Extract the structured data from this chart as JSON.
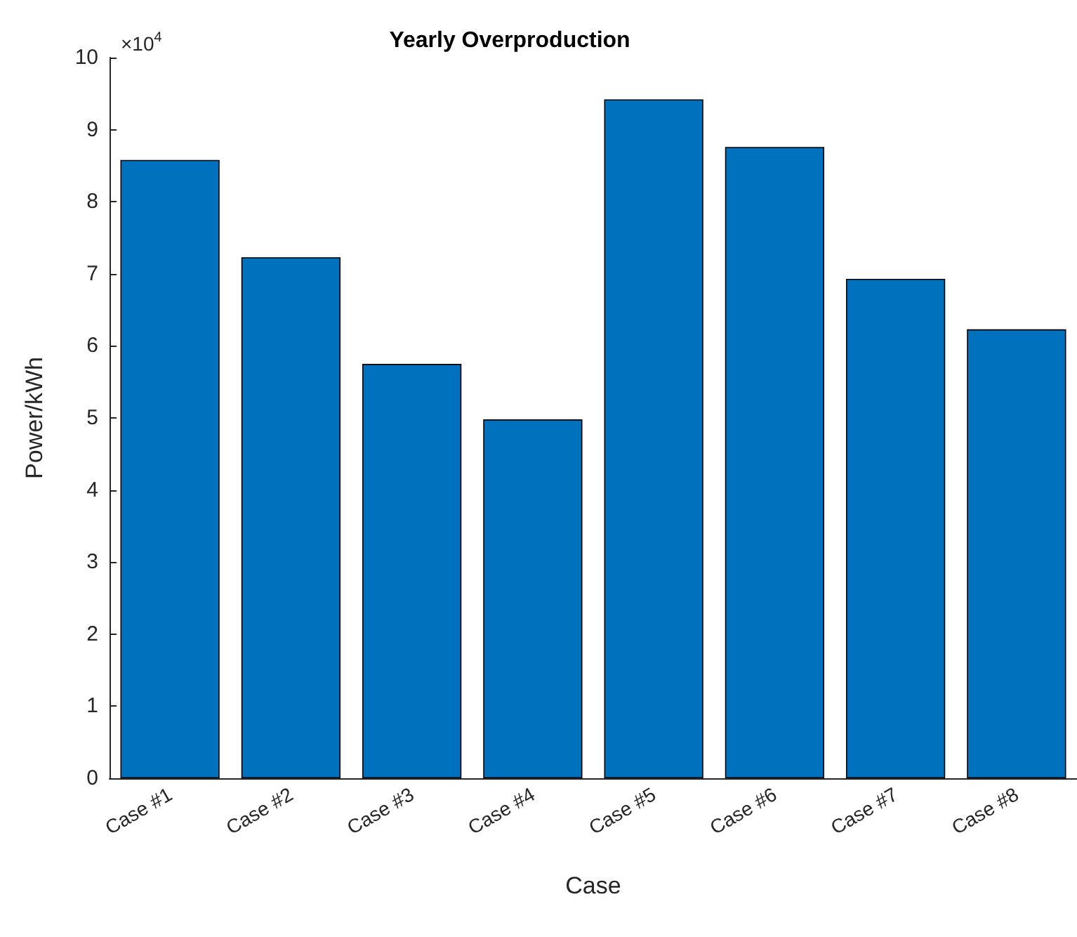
{
  "chart_data": {
    "type": "bar",
    "title": "Yearly Overproduction",
    "xlabel": "Case",
    "ylabel": "Power/kWh",
    "categories": [
      "Case #1",
      "Case #2",
      "Case #3",
      "Case #4",
      "Case #5",
      "Case #6",
      "Case #7",
      "Case #8"
    ],
    "values": [
      8.58,
      7.23,
      5.75,
      4.98,
      9.42,
      8.76,
      6.93,
      6.23
    ],
    "color": "#0072bd",
    "ylim": [
      0,
      10
    ],
    "yticks": [
      0,
      1,
      2,
      3,
      4,
      5,
      6,
      7,
      8,
      9,
      10
    ],
    "annotations": [
      "×10$^{4}$"
    ],
    "grid": false
  }
}
